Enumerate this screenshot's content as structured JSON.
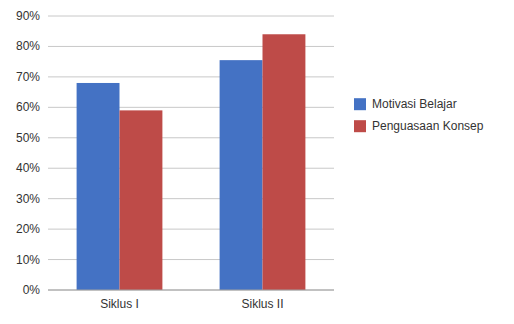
{
  "chart_data": {
    "type": "bar",
    "categories": [
      "Siklus I",
      "Siklus II"
    ],
    "series": [
      {
        "name": "Motivasi Belajar",
        "color": "#4472C4",
        "values": [
          0.68,
          0.755
        ]
      },
      {
        "name": "Penguasaan Konsep",
        "color": "#BE4B48",
        "values": [
          0.59,
          0.84
        ]
      }
    ],
    "ylim": [
      0,
      0.9
    ],
    "yticks": [
      {
        "value": 0.0,
        "label": "0%"
      },
      {
        "value": 0.1,
        "label": "10%"
      },
      {
        "value": 0.2,
        "label": "20%"
      },
      {
        "value": 0.3,
        "label": "30%"
      },
      {
        "value": 0.4,
        "label": "40%"
      },
      {
        "value": 0.5,
        "label": "50%"
      },
      {
        "value": 0.6,
        "label": "60%"
      },
      {
        "value": 0.7,
        "label": "70%"
      },
      {
        "value": 0.8,
        "label": "80%"
      },
      {
        "value": 0.9,
        "label": "90%"
      }
    ],
    "grid": true,
    "legend": "right"
  }
}
